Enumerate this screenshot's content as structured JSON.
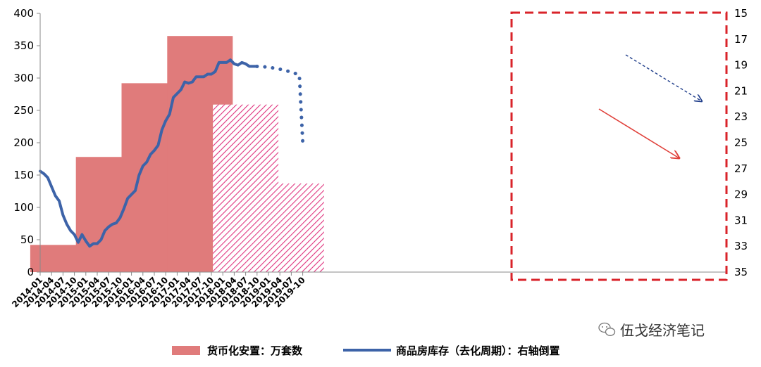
{
  "chart_data": {
    "type": "bar+line",
    "left_axis": {
      "ticks": [
        "0",
        "50",
        "100",
        "150",
        "200",
        "250",
        "300",
        "350",
        "400"
      ],
      "ylim": [
        0,
        400
      ]
    },
    "right_axis": {
      "ticks": [
        "15",
        "17",
        "19",
        "21",
        "23",
        "25",
        "27",
        "29",
        "31",
        "33",
        "35"
      ],
      "ylim": [
        15,
        35
      ],
      "inverted": true
    },
    "x_ticks": [
      "2014-01",
      "2014-04",
      "2014-07",
      "2014-10",
      "2015-01",
      "2015-04",
      "2015-07",
      "2015-10",
      "2016-01",
      "2016-04",
      "2016-07",
      "2016-10",
      "2017-01",
      "2017-04",
      "2017-07",
      "2017-10",
      "2018-01",
      "2018-04",
      "2018-07",
      "2018-10",
      "2019-01",
      "2019-04",
      "2019-07",
      "2019-10"
    ],
    "series": [
      {
        "name": "货币化安置：万套数",
        "type": "bar",
        "color": "#e07b7b",
        "bars": [
          {
            "x": "2014-07",
            "value": 42
          },
          {
            "x": "2015-07",
            "value": 178
          },
          {
            "x": "2016-07",
            "value": 292
          },
          {
            "x": "2017-07",
            "value": 365
          }
        ],
        "forecast_color": "#e0357f",
        "forecast_bars": [
          {
            "x": "2018-07",
            "value": 259
          },
          {
            "x": "2019-07",
            "value": 137
          }
        ]
      },
      {
        "name": "商品房库存（去化周期）：右轴倒置",
        "type": "line",
        "color": "#3d63a8",
        "x_months": [
          "2014-01",
          "2014-02",
          "2014-03",
          "2014-04",
          "2014-05",
          "2014-06",
          "2014-07",
          "2014-08",
          "2014-09",
          "2014-10",
          "2014-11",
          "2014-12",
          "2015-01",
          "2015-02",
          "2015-03",
          "2015-04",
          "2015-05",
          "2015-06",
          "2015-07",
          "2015-08",
          "2015-09",
          "2015-10",
          "2015-11",
          "2015-12",
          "2016-01",
          "2016-02",
          "2016-03",
          "2016-04",
          "2016-05",
          "2016-06",
          "2016-07",
          "2016-08",
          "2016-09",
          "2016-10",
          "2016-11",
          "2016-12",
          "2017-01",
          "2017-02",
          "2017-03",
          "2017-04",
          "2017-05",
          "2017-06",
          "2017-07",
          "2017-08",
          "2017-09",
          "2017-10",
          "2017-11",
          "2017-12",
          "2018-01",
          "2018-02",
          "2018-03",
          "2018-04",
          "2018-05",
          "2018-06",
          "2018-07",
          "2018-08",
          "2018-09",
          "2018-10"
        ],
        "values": [
          27.2,
          27.4,
          27.7,
          28.4,
          29.1,
          29.5,
          30.6,
          31.3,
          31.8,
          32.1,
          32.7,
          32.1,
          32.6,
          33.0,
          32.8,
          32.8,
          32.5,
          31.8,
          31.5,
          31.3,
          31.2,
          30.8,
          30.1,
          29.3,
          29.0,
          28.7,
          27.5,
          26.8,
          26.5,
          25.9,
          25.6,
          25.2,
          24.0,
          23.3,
          22.8,
          21.5,
          21.2,
          20.9,
          20.3,
          20.4,
          20.3,
          19.9,
          19.9,
          19.9,
          19.7,
          19.7,
          19.5,
          18.8,
          18.8,
          18.8,
          18.6,
          18.9,
          19.0,
          18.8,
          18.9,
          19.1,
          19.1,
          19.1
        ],
        "forecast_values": [
          {
            "x": "2018-10",
            "value": 19.1
          },
          {
            "x": "2019-10",
            "value": 24.9
          }
        ]
      }
    ],
    "annotations": [
      "forecast box (dashed red) covering 2018-01 to 2019-10",
      "blue dashed downward arrow",
      "red downward arrow"
    ]
  },
  "legend": {
    "bar_label": "货币化安置：万套数",
    "line_label": "商品房库存（去化周期）：右轴倒置"
  },
  "watermark": {
    "text": "伍戈经济笔记"
  }
}
